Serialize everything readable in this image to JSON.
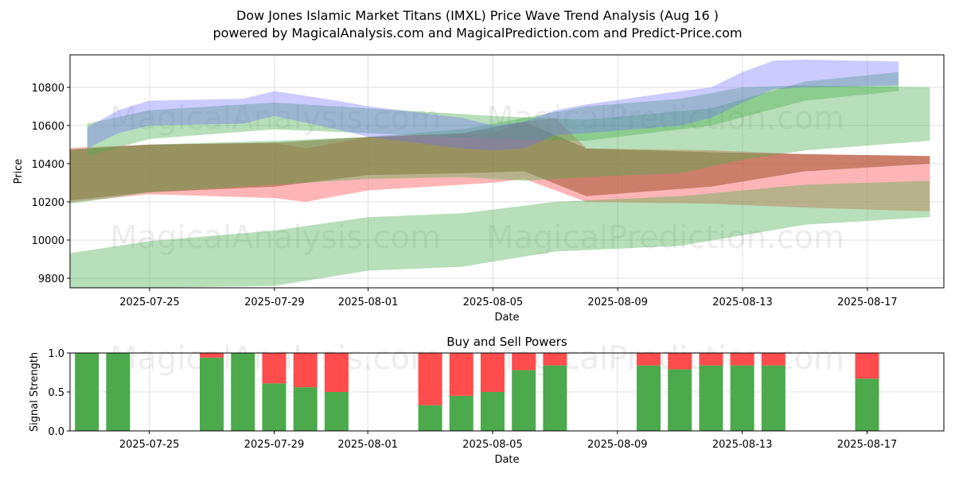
{
  "title_line1": "Dow Jones Islamic Market Titans (IMXL) Price Wave Trend Analysis (Aug 16 )",
  "title_line2": "powered by MagicalAnalysis.com and MagicalPrediction.com and Predict-Price.com",
  "watermarks": [
    "MagicalAnalysis.com",
    "MagicalPrediction.com"
  ],
  "colors": {
    "blue_band": "#6b6bff",
    "green_band": "#4caf50",
    "red_band": "#ff6b6b",
    "brown_band": "#a0522d",
    "buy": "#4caa4c",
    "sell": "#ff4c4c"
  },
  "chart_data": [
    {
      "type": "area",
      "title": "",
      "xlabel": "Date",
      "ylabel": "Price",
      "x_ticks": [
        "2025-07-25",
        "2025-07-29",
        "2025-08-01",
        "2025-08-05",
        "2025-08-09",
        "2025-08-13",
        "2025-08-17"
      ],
      "y_ticks": [
        9800,
        10000,
        10200,
        10400,
        10600,
        10800
      ],
      "xlim": [
        "2025-07-22",
        "2025-08-19"
      ],
      "ylim": [
        9750,
        10970
      ],
      "grid": true,
      "series": [
        {
          "color": "blue",
          "dates": [
            "2025-07-23",
            "2025-07-24",
            "2025-07-25",
            "2025-07-28",
            "2025-07-29",
            "2025-07-31",
            "2025-08-01",
            "2025-08-04",
            "2025-08-05",
            "2025-08-06",
            "2025-08-07",
            "2025-08-08",
            "2025-08-11",
            "2025-08-12",
            "2025-08-13",
            "2025-08-14",
            "2025-08-15",
            "2025-08-18"
          ],
          "upper": [
            10590,
            10680,
            10730,
            10740,
            10780,
            10730,
            10700,
            10640,
            10600,
            10620,
            10680,
            10710,
            10780,
            10800,
            10880,
            10940,
            10945,
            10935
          ],
          "lower": [
            10480,
            10560,
            10600,
            10610,
            10650,
            10580,
            10540,
            10480,
            10470,
            10480,
            10550,
            10560,
            10600,
            10640,
            10720,
            10790,
            10800,
            10810
          ]
        },
        {
          "color": "green",
          "dates": [
            "2025-07-23",
            "2025-07-25",
            "2025-07-29",
            "2025-08-01",
            "2025-08-05",
            "2025-08-08",
            "2025-08-12",
            "2025-08-15",
            "2025-08-18"
          ],
          "upper": [
            10610,
            10680,
            10720,
            10690,
            10650,
            10630,
            10690,
            10830,
            10880
          ],
          "lower": [
            10440,
            10530,
            10580,
            10560,
            10530,
            10520,
            10600,
            10730,
            10780
          ]
        },
        {
          "color": "green",
          "dates": [
            "2025-07-22",
            "2025-07-25",
            "2025-07-29",
            "2025-08-01",
            "2025-08-04",
            "2025-08-06",
            "2025-08-08",
            "2025-08-11",
            "2025-08-13",
            "2025-08-15",
            "2025-08-19"
          ],
          "upper": [
            10470,
            10500,
            10520,
            10540,
            10580,
            10640,
            10700,
            10740,
            10800,
            10810,
            10800
          ],
          "lower": [
            10180,
            10250,
            10290,
            10320,
            10330,
            10310,
            10330,
            10350,
            10420,
            10470,
            10520
          ]
        },
        {
          "color": "green",
          "dates": [
            "2025-07-22",
            "2025-07-25",
            "2025-07-29",
            "2025-08-01",
            "2025-08-04",
            "2025-08-07",
            "2025-08-11",
            "2025-08-15",
            "2025-08-19"
          ],
          "upper": [
            9920,
            9995,
            10050,
            10120,
            10140,
            10200,
            10230,
            10290,
            10310
          ],
          "lower": [
            9750,
            9750,
            9760,
            9840,
            9860,
            9940,
            9970,
            10080,
            10120
          ]
        },
        {
          "color": "red",
          "dates": [
            "2025-07-22",
            "2025-07-25",
            "2025-07-29",
            "2025-07-30",
            "2025-08-01",
            "2025-08-05",
            "2025-08-06",
            "2025-08-07",
            "2025-08-08",
            "2025-08-12",
            "2025-08-15",
            "2025-08-19"
          ],
          "upper": [
            10480,
            10500,
            10510,
            10480,
            10540,
            10560,
            10620,
            10640,
            10480,
            10470,
            10450,
            10440
          ],
          "lower": [
            10190,
            10240,
            10220,
            10200,
            10260,
            10300,
            10320,
            10260,
            10200,
            10190,
            10170,
            10150
          ]
        },
        {
          "color": "brown",
          "dates": [
            "2025-07-22",
            "2025-07-25",
            "2025-07-29",
            "2025-08-01",
            "2025-08-04",
            "2025-08-06",
            "2025-08-08",
            "2025-08-12",
            "2025-08-15",
            "2025-08-19"
          ],
          "upper": [
            10470,
            10500,
            10510,
            10540,
            10560,
            10620,
            10480,
            10460,
            10450,
            10440
          ],
          "lower": [
            10200,
            10250,
            10280,
            10340,
            10350,
            10360,
            10230,
            10280,
            10360,
            10400
          ]
        }
      ]
    },
    {
      "type": "bar",
      "title": "Buy and Sell Powers",
      "xlabel": "Date",
      "ylabel": "Signal Strength",
      "x_ticks": [
        "2025-07-25",
        "2025-07-29",
        "2025-08-01",
        "2025-08-05",
        "2025-08-09",
        "2025-08-13",
        "2025-08-17"
      ],
      "y_ticks": [
        "0.0",
        "0.5",
        "1.0"
      ],
      "ylim": [
        0,
        1
      ],
      "categories": [
        "2025-07-23",
        "2025-07-24",
        "2025-07-27",
        "2025-07-28",
        "2025-07-29",
        "2025-07-30",
        "2025-07-31",
        "2025-08-03",
        "2025-08-04",
        "2025-08-05",
        "2025-08-06",
        "2025-08-07",
        "2025-08-10",
        "2025-08-11",
        "2025-08-12",
        "2025-08-13",
        "2025-08-14",
        "2025-08-17"
      ],
      "series": [
        {
          "name": "",
          "values": [
            1.0,
            1.0,
            0.94,
            1.0,
            0.61,
            0.56,
            0.5,
            0.33,
            0.45,
            0.5,
            0.78,
            0.84,
            0.84,
            0.79,
            0.84,
            0.84,
            0.84,
            0.67
          ]
        },
        {
          "name": "",
          "values": [
            0.0,
            0.0,
            0.06,
            0.0,
            0.39,
            0.44,
            0.5,
            0.67,
            0.55,
            0.5,
            0.22,
            0.16,
            0.16,
            0.21,
            0.16,
            0.16,
            0.16,
            0.33
          ]
        }
      ]
    }
  ]
}
